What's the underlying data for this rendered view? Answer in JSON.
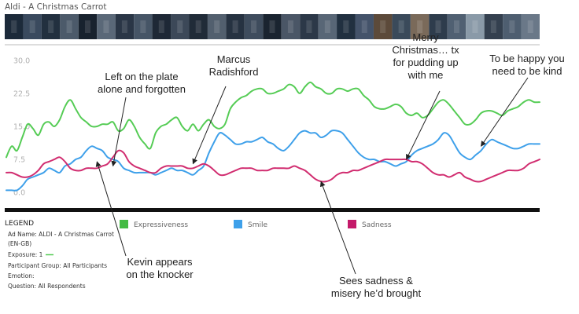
{
  "window": {
    "title": "Aldi - A Christmas Carrot"
  },
  "filmstrip": {
    "frame_colors": [
      "#1c2a3a",
      "#3a4a5e",
      "#22303f",
      "#4c5a6a",
      "#18222e",
      "#5a6878",
      "#2a3646",
      "#465566",
      "#1e2836",
      "#3c4858",
      "#202b38",
      "#525f6e",
      "#263241",
      "#3e4c5d",
      "#1a2430",
      "#4a5666",
      "#2c3848",
      "#586676",
      "#213040",
      "#44536a",
      "#5c4a3a",
      "#3a4a5a",
      "#7a6a5a",
      "#2e3c4c",
      "#506072",
      "#8a9aa8",
      "#34404f",
      "#4e5e70",
      "#6a7888"
    ]
  },
  "chart_data": {
    "type": "line",
    "title": "",
    "xlabel": "",
    "ylabel": "",
    "x_range": [
      0,
      100
    ],
    "ylim": [
      -3,
      33
    ],
    "y_ticks": [
      "30.0",
      "22.5",
      "15.0",
      "7.5",
      "0.0"
    ],
    "y_tick_values": [
      30,
      22.5,
      15,
      7.5,
      0
    ],
    "grid": false,
    "series": [
      {
        "name": "Expressiveness",
        "color": "#55cc55",
        "x": [
          0,
          1,
          2,
          3,
          4,
          5,
          6,
          7,
          8,
          9,
          10,
          11,
          12,
          13,
          14,
          15,
          16,
          17,
          18,
          19,
          20,
          21,
          22,
          23,
          24,
          25,
          26,
          27,
          28,
          29,
          30,
          31,
          32,
          33,
          34,
          35,
          36,
          37,
          38,
          39,
          40,
          41,
          42,
          43,
          44,
          45,
          46,
          47,
          48,
          49,
          50,
          51,
          52,
          53,
          54,
          55,
          56,
          57,
          58,
          59,
          60,
          61,
          62,
          63,
          64,
          65,
          66,
          67,
          68,
          69,
          70,
          71,
          72,
          73,
          74,
          75,
          76,
          77,
          78,
          79,
          80,
          81,
          82,
          83,
          84,
          85,
          86,
          87,
          88,
          89,
          90,
          91,
          92,
          93,
          94,
          95,
          96,
          97,
          98,
          99,
          100
        ],
        "values": [
          8.0,
          10.5,
          9.5,
          12.5,
          15.5,
          14.5,
          13.0,
          15.5,
          16.0,
          15.0,
          16.5,
          19.5,
          21.0,
          19.0,
          17.0,
          16.0,
          15.0,
          15.0,
          15.5,
          15.5,
          16.0,
          14.0,
          14.5,
          16.5,
          15.0,
          12.5,
          11.0,
          10.0,
          13.5,
          15.0,
          15.5,
          16.5,
          17.0,
          15.0,
          14.0,
          15.5,
          14.0,
          15.5,
          16.5,
          15.0,
          14.5,
          15.5,
          19.0,
          20.5,
          21.5,
          22.0,
          23.0,
          23.5,
          23.5,
          22.5,
          22.5,
          23.0,
          23.5,
          24.5,
          24.0,
          22.5,
          24.0,
          25.0,
          24.0,
          23.5,
          22.5,
          22.5,
          23.5,
          23.5,
          23.0,
          23.5,
          23.5,
          22.0,
          21.0,
          19.5,
          19.0,
          19.0,
          19.5,
          20.0,
          19.5,
          18.0,
          17.5,
          18.0,
          17.0,
          17.5,
          19.0,
          20.5,
          21.0,
          20.0,
          18.5,
          17.0,
          15.5,
          15.5,
          16.5,
          18.0,
          18.5,
          18.5,
          18.0,
          17.5,
          18.5,
          19.0,
          19.5,
          20.5,
          21.0,
          20.5,
          20.5
        ]
      },
      {
        "name": "Smile",
        "color": "#3ea0ea",
        "x": [
          0,
          1,
          2,
          3,
          4,
          5,
          6,
          7,
          8,
          9,
          10,
          11,
          12,
          13,
          14,
          15,
          16,
          17,
          18,
          19,
          20,
          21,
          22,
          23,
          24,
          25,
          26,
          27,
          28,
          29,
          30,
          31,
          32,
          33,
          34,
          35,
          36,
          37,
          38,
          39,
          40,
          41,
          42,
          43,
          44,
          45,
          46,
          47,
          48,
          49,
          50,
          51,
          52,
          53,
          54,
          55,
          56,
          57,
          58,
          59,
          60,
          61,
          62,
          63,
          64,
          65,
          66,
          67,
          68,
          69,
          70,
          71,
          72,
          73,
          74,
          75,
          76,
          77,
          78,
          79,
          80,
          81,
          82,
          83,
          84,
          85,
          86,
          87,
          88,
          89,
          90,
          91,
          92,
          93,
          94,
          95,
          96,
          97,
          98,
          99,
          100
        ],
        "values": [
          0.5,
          0.5,
          0.5,
          1.5,
          3.0,
          3.5,
          4.0,
          4.5,
          5.5,
          5.0,
          4.5,
          6.0,
          6.5,
          7.5,
          8.0,
          9.5,
          10.5,
          10.0,
          9.5,
          8.0,
          7.5,
          7.0,
          5.5,
          5.0,
          4.5,
          4.5,
          4.5,
          4.5,
          4.0,
          4.5,
          5.0,
          5.5,
          5.0,
          5.0,
          4.5,
          4.0,
          5.0,
          6.0,
          9.0,
          11.5,
          13.5,
          13.0,
          12.0,
          11.0,
          11.0,
          11.5,
          11.5,
          12.0,
          12.5,
          11.5,
          11.0,
          10.0,
          9.5,
          10.5,
          12.0,
          13.5,
          14.0,
          13.5,
          13.5,
          12.5,
          13.0,
          14.0,
          14.0,
          13.5,
          12.0,
          10.5,
          9.0,
          8.0,
          7.5,
          7.5,
          7.0,
          7.0,
          6.5,
          6.0,
          6.5,
          7.0,
          8.5,
          9.5,
          10.0,
          10.5,
          11.0,
          12.0,
          13.5,
          13.0,
          11.0,
          9.0,
          8.0,
          7.5,
          8.5,
          9.5,
          11.0,
          12.0,
          11.5,
          11.0,
          10.5,
          10.0,
          10.0,
          10.5,
          11.0,
          11.0,
          11.0
        ]
      },
      {
        "name": "Sadness",
        "color": "#d12d70",
        "x": [
          0,
          1,
          2,
          3,
          4,
          5,
          6,
          7,
          8,
          9,
          10,
          11,
          12,
          13,
          14,
          15,
          16,
          17,
          18,
          19,
          20,
          21,
          22,
          23,
          24,
          25,
          26,
          27,
          28,
          29,
          30,
          31,
          32,
          33,
          34,
          35,
          36,
          37,
          38,
          39,
          40,
          41,
          42,
          43,
          44,
          45,
          46,
          47,
          48,
          49,
          50,
          51,
          52,
          53,
          54,
          55,
          56,
          57,
          58,
          59,
          60,
          61,
          62,
          63,
          64,
          65,
          66,
          67,
          68,
          69,
          70,
          71,
          72,
          73,
          74,
          75,
          76,
          77,
          78,
          79,
          80,
          81,
          82,
          83,
          84,
          85,
          86,
          87,
          88,
          89,
          90,
          91,
          92,
          93,
          94,
          95,
          96,
          97,
          98,
          99,
          100
        ],
        "values": [
          4.5,
          4.5,
          4.0,
          3.5,
          3.5,
          4.0,
          5.0,
          6.5,
          7.0,
          7.5,
          8.0,
          7.0,
          5.5,
          5.0,
          5.0,
          5.5,
          5.5,
          5.5,
          6.0,
          6.5,
          8.0,
          9.5,
          9.0,
          7.0,
          6.0,
          5.5,
          5.0,
          4.5,
          4.5,
          5.5,
          6.0,
          6.0,
          6.0,
          6.0,
          5.5,
          5.5,
          6.0,
          6.5,
          6.0,
          5.0,
          4.0,
          4.0,
          4.5,
          5.0,
          5.5,
          5.5,
          5.5,
          5.0,
          5.0,
          5.0,
          5.5,
          5.5,
          5.5,
          5.5,
          6.0,
          5.5,
          5.0,
          4.0,
          3.0,
          2.5,
          2.5,
          3.0,
          4.0,
          4.5,
          4.5,
          5.0,
          5.0,
          5.5,
          6.0,
          6.5,
          7.0,
          7.5,
          7.5,
          7.5,
          7.5,
          7.5,
          7.0,
          7.0,
          6.5,
          5.5,
          4.5,
          4.0,
          4.0,
          3.5,
          4.0,
          4.5,
          3.5,
          3.0,
          2.5,
          2.5,
          3.0,
          3.5,
          4.0,
          4.5,
          5.0,
          5.0,
          5.0,
          5.5,
          6.5,
          7.0,
          7.5
        ]
      }
    ],
    "annotations": [
      {
        "lines": [
          "Left on the plate",
          "alone and forgotten"
        ],
        "x": 20,
        "value": 6.0
      },
      {
        "lines": [
          "Marcus",
          "Radishford"
        ],
        "x": 35,
        "value": 6.5
      },
      {
        "lines": [
          "Merry",
          "Christmas… tx",
          "for pudding up",
          "with me"
        ],
        "x": 75,
        "value": 7.5
      },
      {
        "lines": [
          "To be happy you",
          "need to be kind"
        ],
        "x": 89,
        "value": 10.5
      },
      {
        "lines": [
          "Kevin appears",
          "on the knocker"
        ],
        "x": 17,
        "value": 7.0
      },
      {
        "lines": [
          "Sees sadness &",
          "misery he’d brought"
        ],
        "x": 59,
        "value": 2.5
      }
    ]
  },
  "legend": {
    "heading": "LEGEND",
    "items": [
      {
        "label": "Expressiveness",
        "color": "#44bb44"
      },
      {
        "label": "Smile",
        "color": "#3ea0ea"
      },
      {
        "label": "Sadness",
        "color": "#c41a6a"
      }
    ]
  },
  "details": {
    "ad_name": "Ad Name: ALDI - A Christmas Carrot",
    "ad_locale": "(EN-GB)",
    "exposure": "Exposure: 1",
    "exposure_swatch": "#55cc55",
    "participant_group": "Participant Group:  All Participants",
    "emotion": "Emotion:",
    "question": "Question:  All Respondents"
  }
}
